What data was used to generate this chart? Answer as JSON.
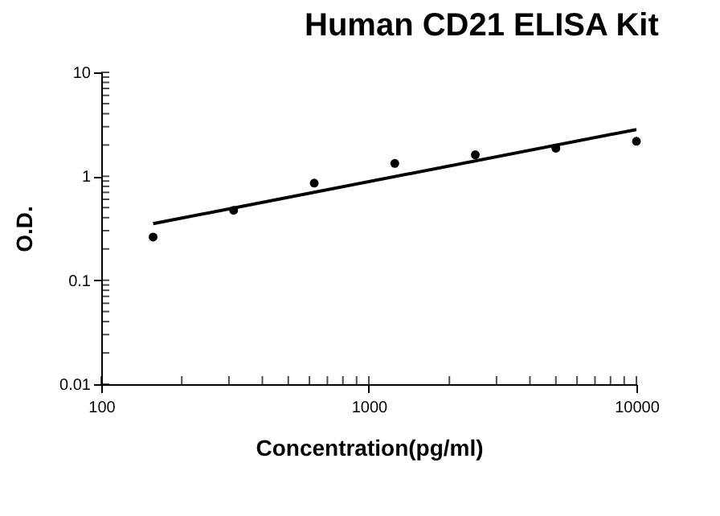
{
  "chart_data": {
    "type": "scatter",
    "title": "Human CD21 ELISA Kit",
    "xlabel": "Concentration(pg/ml)",
    "ylabel": "O.D.",
    "log": "xy",
    "grid": false,
    "xlim": [
      100,
      10000
    ],
    "xticks": [
      100,
      1000,
      10000
    ],
    "ylim": [
      0.01,
      10
    ],
    "yticks": [
      0.01,
      0.1,
      1,
      10
    ],
    "series": [
      {
        "marker": "circle",
        "color": "#000000",
        "x": [
          156.25,
          312.5,
          625,
          1250,
          2500,
          5000,
          10000
        ],
        "values": [
          0.26,
          0.47,
          0.86,
          1.33,
          1.61,
          1.86,
          2.17
        ]
      },
      {
        "type": "line",
        "color": "#000000",
        "x": [
          156.25,
          10000
        ],
        "values": [
          0.35,
          2.82
        ]
      }
    ]
  }
}
